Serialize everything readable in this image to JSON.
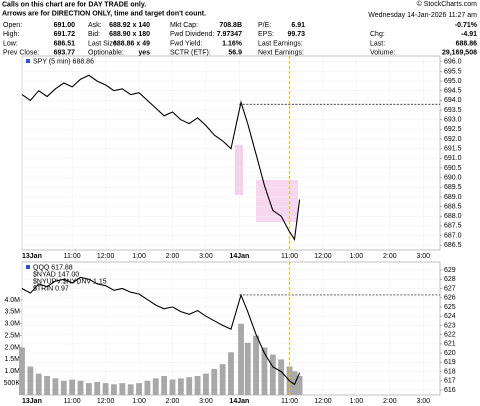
{
  "notice": [
    "Calls on this chart are for DAY TRADE only.",
    "Arrows are for DIRECTION ONLY, time and target don't count."
  ],
  "copyright": "© StockCharts.com",
  "timestamp": "Wednesday 14-Jan-2026 11:27 am",
  "change_pct": "-0.71%",
  "quote": [
    [
      {
        "label": "Open:",
        "value": "691.00"
      },
      {
        "label": "High:",
        "value": "691.72"
      },
      {
        "label": "Low:",
        "value": "686.51"
      },
      {
        "label": "Prev Close:",
        "value": "693.77"
      }
    ],
    [
      {
        "label": "Ask:",
        "value": "688.92 x 140"
      },
      {
        "label": "Bid:",
        "value": "688.90 x 180"
      },
      {
        "label": "Last Size:",
        "value": "688.86 x 49"
      },
      {
        "label": "Optionable:",
        "value": "yes"
      }
    ],
    [
      {
        "label": "Mkt Cap:",
        "value": "708.8B"
      },
      {
        "label": "Fwd Dividend:",
        "value": "7.97347"
      },
      {
        "label": "Fwd Yield:",
        "value": "1.16%"
      },
      {
        "label": "SCTR (ETF):",
        "value": "56.9"
      }
    ],
    [
      {
        "label": "P/E:",
        "value": "6.91"
      },
      {
        "label": "EPS:",
        "value": "99.73"
      },
      {
        "label": "Last Earnings:"
      },
      {
        "label": "Next Earnings:"
      }
    ]
  ],
  "summary": [
    {
      "label": "Chg:",
      "value": "-4.91"
    },
    {
      "label": "Last:",
      "value": "688.86"
    },
    {
      "label": "Volume:",
      "value": "29,169,508"
    }
  ],
  "chart_data": [
    {
      "type": "line",
      "x": [
        0,
        0.25,
        0.5,
        0.75,
        1,
        1.25,
        1.5,
        1.75,
        2,
        2.25,
        2.5,
        2.75,
        3,
        3.25,
        3.5,
        3.75,
        4,
        4.25,
        4.5,
        4.75,
        5,
        5.25,
        5.5,
        5.75,
        6,
        6.25,
        6.55,
        6.75,
        7,
        7.25,
        7.5,
        7.75,
        8,
        8.15,
        8.3
      ],
      "series": [
        {
          "name": "SPY (5 min) 688.86",
          "color": "#000000",
          "values": [
            694.3,
            694.0,
            694.5,
            694.2,
            694.6,
            694.9,
            694.7,
            695.1,
            695.3,
            695.0,
            694.8,
            694.5,
            694.6,
            694.3,
            694.4,
            694.0,
            693.6,
            693.2,
            693.4,
            693.0,
            692.8,
            693.1,
            692.7,
            692.2,
            691.9,
            691.5,
            693.9,
            692.8,
            691.2,
            689.6,
            688.3,
            688.0,
            687.2,
            686.8,
            688.86
          ]
        }
      ],
      "xlim": [
        0,
        12.5
      ],
      "xticks": [
        {
          "value": 0,
          "label": "13Jan"
        },
        {
          "value": 1.5,
          "label": "11:00"
        },
        {
          "value": 2.5,
          "label": "12:00"
        },
        {
          "value": 3.5,
          "label": "1:00"
        },
        {
          "value": 4.5,
          "label": "2:00"
        },
        {
          "value": 5.5,
          "label": "3:00"
        },
        {
          "value": 6.5,
          "label": "14Jan"
        },
        {
          "value": 8,
          "label": "11:00"
        },
        {
          "value": 9,
          "label": "12:00"
        },
        {
          "value": 10,
          "label": "1:00"
        },
        {
          "value": 11,
          "label": "2:00"
        },
        {
          "value": 12,
          "label": "3:00"
        }
      ],
      "ylim": [
        686.25,
        696.3
      ],
      "yticks": [
        {
          "value": 696,
          "label": "696.0"
        },
        695.5,
        {
          "value": 695,
          "label": "695.0"
        },
        694.5,
        {
          "value": 694,
          "label": "694.0"
        },
        693.5,
        {
          "value": 693,
          "label": "693.0"
        },
        692.5,
        {
          "value": 692,
          "label": "692.0"
        },
        691.5,
        {
          "value": 691,
          "label": "691.0"
        },
        690.5,
        {
          "value": 690,
          "label": "690.0"
        },
        689.5,
        {
          "value": 689,
          "label": "689.0"
        },
        688.5,
        {
          "value": 688,
          "label": "688.0"
        },
        687.5,
        {
          "value": 687,
          "label": "687.0"
        },
        686.5
      ],
      "hline": 693.8,
      "current_x": 8.0,
      "grid": true
    },
    {
      "type": "line",
      "x": [
        0,
        0.25,
        0.5,
        0.75,
        1,
        1.25,
        1.5,
        1.75,
        2,
        2.25,
        2.5,
        2.75,
        3,
        3.25,
        3.5,
        3.75,
        4,
        4.25,
        4.5,
        4.75,
        5,
        5.25,
        5.5,
        5.75,
        6,
        6.25,
        6.55,
        6.75,
        7,
        7.25,
        7.5,
        7.75,
        8,
        8.15,
        8.3
      ],
      "series": [
        {
          "name": "QQQ 617.88",
          "color": "#000000",
          "axis": "y2",
          "values": [
            627.0,
            626.5,
            627.5,
            627.2,
            627.8,
            628.0,
            627.6,
            628.2,
            628.0,
            627.5,
            627.3,
            626.8,
            627.0,
            626.6,
            626.4,
            625.8,
            625.2,
            624.8,
            625.0,
            624.5,
            624.2,
            624.6,
            624.0,
            623.5,
            623.0,
            622.6,
            626.3,
            624.5,
            622.0,
            620.0,
            618.5,
            618.0,
            617.0,
            616.6,
            617.88
          ]
        }
      ],
      "volume": {
        "color": "#a8a8a8",
        "values": [
          2000000,
          1200000,
          900000,
          800000,
          700000,
          600000,
          650000,
          600000,
          500000,
          550000,
          500000,
          450000,
          500000,
          450000,
          500000,
          600000,
          700000,
          800000,
          650000,
          700000,
          750000,
          800000,
          900000,
          1100000,
          1300000,
          1800000,
          3000000,
          2200000,
          2500000,
          2000000,
          1700000,
          1500000,
          1200000,
          1000000,
          800000
        ]
      },
      "legend_extra": [
        "$NYAD 147.00",
        "$NYUPV:$NYDNV 1.15",
        "$TRIN 0.97"
      ],
      "xlim": [
        0,
        12.5
      ],
      "xticks": [
        {
          "value": 0,
          "label": "13Jan"
        },
        {
          "value": 1.5,
          "label": "11:00"
        },
        {
          "value": 2.5,
          "label": "12:00"
        },
        {
          "value": 3.5,
          "label": "1:00"
        },
        {
          "value": 4.5,
          "label": "2:00"
        },
        {
          "value": 5.5,
          "label": "3:00"
        },
        {
          "value": 6.5,
          "label": "14Jan"
        },
        {
          "value": 8,
          "label": "11:00"
        },
        {
          "value": 9,
          "label": "12:00"
        },
        {
          "value": 10,
          "label": "1:00"
        },
        {
          "value": 11,
          "label": "2:00"
        },
        {
          "value": 12,
          "label": "3:00"
        }
      ],
      "ylim": [
        0,
        5600000
      ],
      "yticks": [
        {
          "value": 4000000,
          "label": "4.0M"
        },
        {
          "value": 3500000,
          "label": "3.5M"
        },
        {
          "value": 3000000,
          "label": "3.0M"
        },
        {
          "value": 2500000,
          "label": "2.5M"
        },
        {
          "value": 2000000,
          "label": "2.0M"
        },
        {
          "value": 1500000,
          "label": "1.5M"
        },
        {
          "value": 1000000,
          "label": "1.0M"
        },
        {
          "value": 500000,
          "label": "500K"
        }
      ],
      "y2lim": [
        615.46,
        629.87
      ],
      "y2ticks": [
        629,
        628,
        627,
        626,
        625,
        624,
        623,
        622,
        621,
        620,
        619,
        618,
        617,
        616
      ],
      "hline": 626.3,
      "current_x": 8.0,
      "grid": true
    }
  ]
}
